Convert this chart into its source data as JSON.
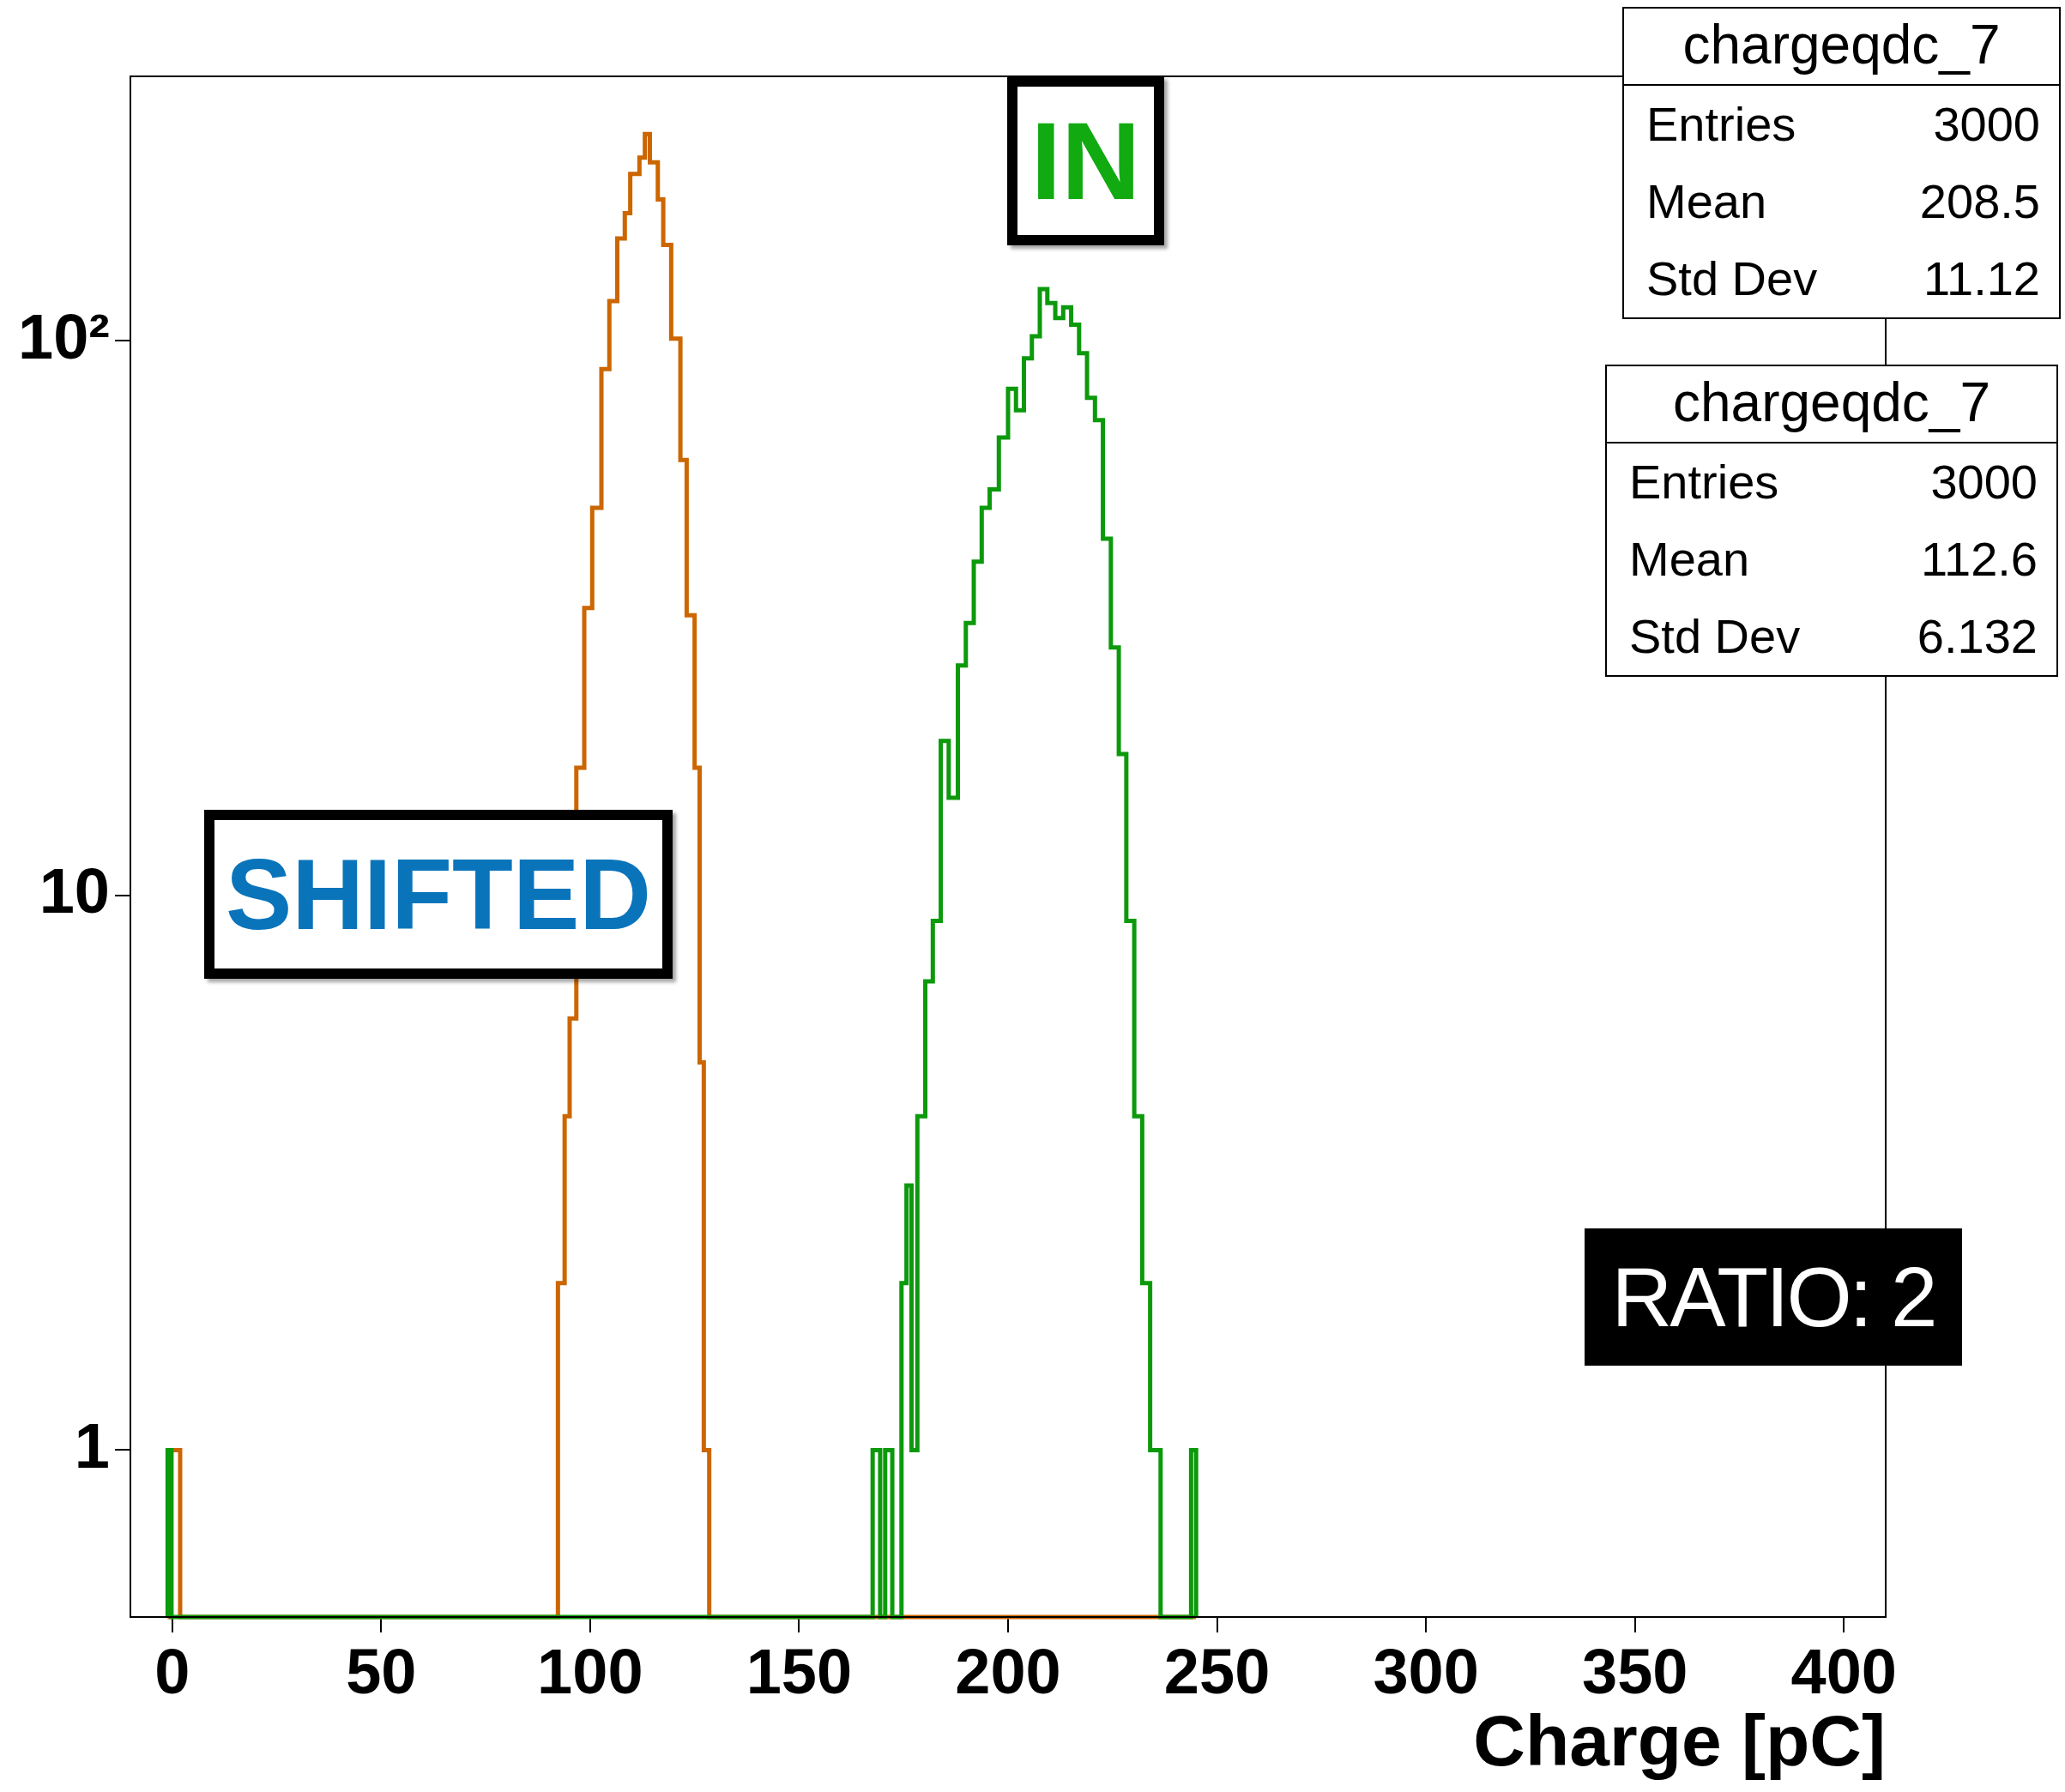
{
  "chart_data": {
    "type": "histogram",
    "xlabel": "Charge [pC]",
    "annotations": [
      "chargeqdc_7",
      "Entries\t3000",
      "Mean\t208.5",
      "Std Dev\t11.12",
      "chargeqdc_7",
      "Entries\t3000",
      "Mean\t112.6",
      "Std Dev\t6.132",
      "IN",
      "SHIFTED",
      "RATIO: 2"
    ],
    "bins": [
      -1.1,
      -0.2,
      1.9,
      92.3,
      93.9,
      95.1,
      96.7,
      98.6,
      100.5,
      102.7,
      104.6,
      106.5,
      108.3,
      109.6,
      111.8,
      113.1,
      114.3,
      116.2,
      117.5,
      119.4,
      121.6,
      123.1,
      125.0,
      126.2,
      127.2,
      128.5,
      167.6,
      169.4,
      170.6,
      172.3,
      174.5,
      175.7,
      176.9,
      178.3,
      180.2,
      182.0,
      183.9,
      185.8,
      188.0,
      189.9,
      191.8,
      193.7,
      195.6,
      197.8,
      200.0,
      201.9,
      203.8,
      205.7,
      207.6,
      209.4,
      211.3,
      213.2,
      215.1,
      217.0,
      218.9,
      220.8,
      222.7,
      224.6,
      226.5,
      228.3,
      230.2,
      232.1,
      234.0,
      236.5,
      243.8,
      245.0
    ],
    "series": [
      {
        "color": "#0c990c",
        "values": [
          1,
          null,
          null,
          null,
          null,
          null,
          null,
          null,
          null,
          null,
          null,
          null,
          null,
          null,
          null,
          null,
          null,
          null,
          null,
          null,
          null,
          null,
          null,
          null,
          null,
          null,
          1,
          null,
          1,
          null,
          2,
          3,
          1,
          4,
          7,
          9,
          19,
          15,
          26,
          31,
          40,
          50,
          54,
          67,
          82,
          75,
          93,
          102,
          124,
          117,
          110,
          115,
          107,
          95,
          79,
          72,
          44,
          28,
          18,
          9,
          4,
          2,
          1,
          null,
          1
        ]
      },
      {
        "color": "#cc6600",
        "values": [
          null,
          1,
          null,
          2,
          4,
          6,
          17,
          33,
          50,
          89,
          118,
          153,
          170,
          200,
          214,
          236,
          210,
          180,
          149,
          101,
          61,
          32,
          17,
          5,
          1,
          null,
          null,
          null,
          null,
          null,
          null,
          null,
          null,
          null,
          null,
          null,
          null,
          null,
          null,
          null,
          null,
          null,
          null,
          null,
          null,
          null,
          null,
          null,
          null,
          null,
          null,
          null,
          null,
          null,
          null,
          null,
          null,
          null,
          null,
          null,
          null,
          null,
          null,
          null,
          null
        ]
      }
    ],
    "xlim": [
      -10,
      410
    ],
    "ylim": [
      0.5,
      300
    ],
    "log": true,
    "xticks": [
      0,
      50,
      100,
      150,
      200,
      250,
      300,
      350,
      400
    ],
    "yticks": [
      1,
      10,
      {
        "value": 100,
        "label": "10²"
      }
    ]
  }
}
